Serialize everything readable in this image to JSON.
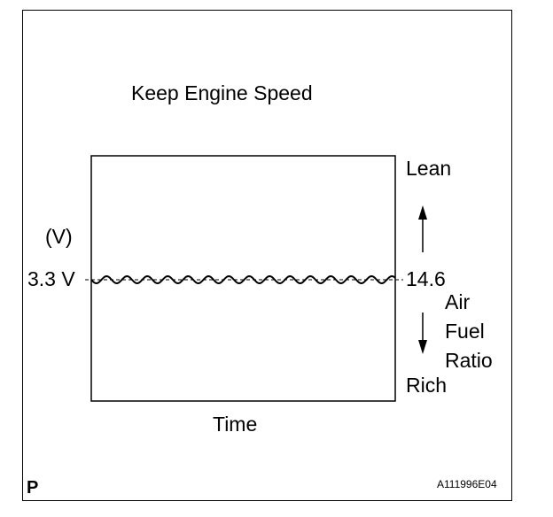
{
  "title": "Keep Engine Speed",
  "y_unit": "(V)",
  "voltage_value": "3.3 V",
  "lean_label": "Lean",
  "afr_value": "14.6",
  "afr_label": {
    "line1": "Air",
    "line2": "Fuel",
    "line3": "Ratio"
  },
  "rich_label": "Rich",
  "x_label": "Time",
  "corner_mark": "P",
  "figure_code": "A111996E04"
}
